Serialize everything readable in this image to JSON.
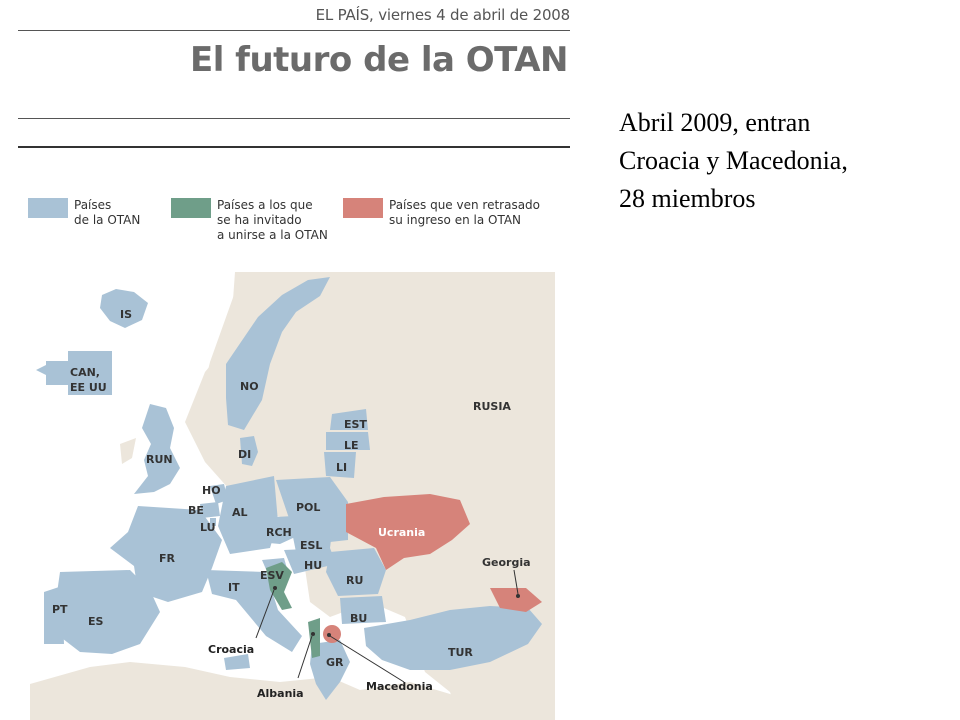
{
  "newspaper": {
    "dateline": "EL PAÍS, viernes 4 de abril de 2008",
    "headline": "El futuro de la OTAN"
  },
  "legend": [
    {
      "label": "Países\nde la OTAN",
      "color": "#a9c2d6"
    },
    {
      "label": "Países a los que\nse ha invitado\na unirse a la OTAN",
      "color": "#6f9e89"
    },
    {
      "label": "Países que ven retrasado\nsu ingreso en la OTAN",
      "color": "#d6837a"
    }
  ],
  "map": {
    "colors": {
      "sea": "#ffffff",
      "land": "#ece6dc",
      "nato": "#a9c2d6",
      "invited": "#6f9e89",
      "delayed": "#d6837a",
      "label": "#333333",
      "label_on_delayed": "#ffffff"
    },
    "countries": {
      "IS": "IS",
      "CAN": "CAN,",
      "EEUU": "EE UU",
      "NO": "NO",
      "RUSIA": "RUSIA",
      "EST": "EST",
      "LE": "LE",
      "LI": "LI",
      "DI": "DI",
      "RUN": "RUN",
      "HO": "HO",
      "BE": "BE",
      "LU": "LU",
      "AL": "AL",
      "POL": "POL",
      "RCH": "RCH",
      "ESL": "ESL",
      "HU": "HU",
      "RU": "RU",
      "BU": "BU",
      "ESV": "ESV",
      "IT": "IT",
      "FR": "FR",
      "ES": "ES",
      "PT": "PT",
      "GR": "GR",
      "TUR": "TUR",
      "Ucrania": "Ucrania",
      "Georgia": "Georgia"
    },
    "callouts": {
      "Croacia": "Croacia",
      "Albania": "Albania",
      "Macedonia": "Macedonia"
    }
  },
  "caption": {
    "lines": [
      "Abril 2009, entran",
      "Croacia y Macedonia,",
      "28 miembros"
    ]
  }
}
